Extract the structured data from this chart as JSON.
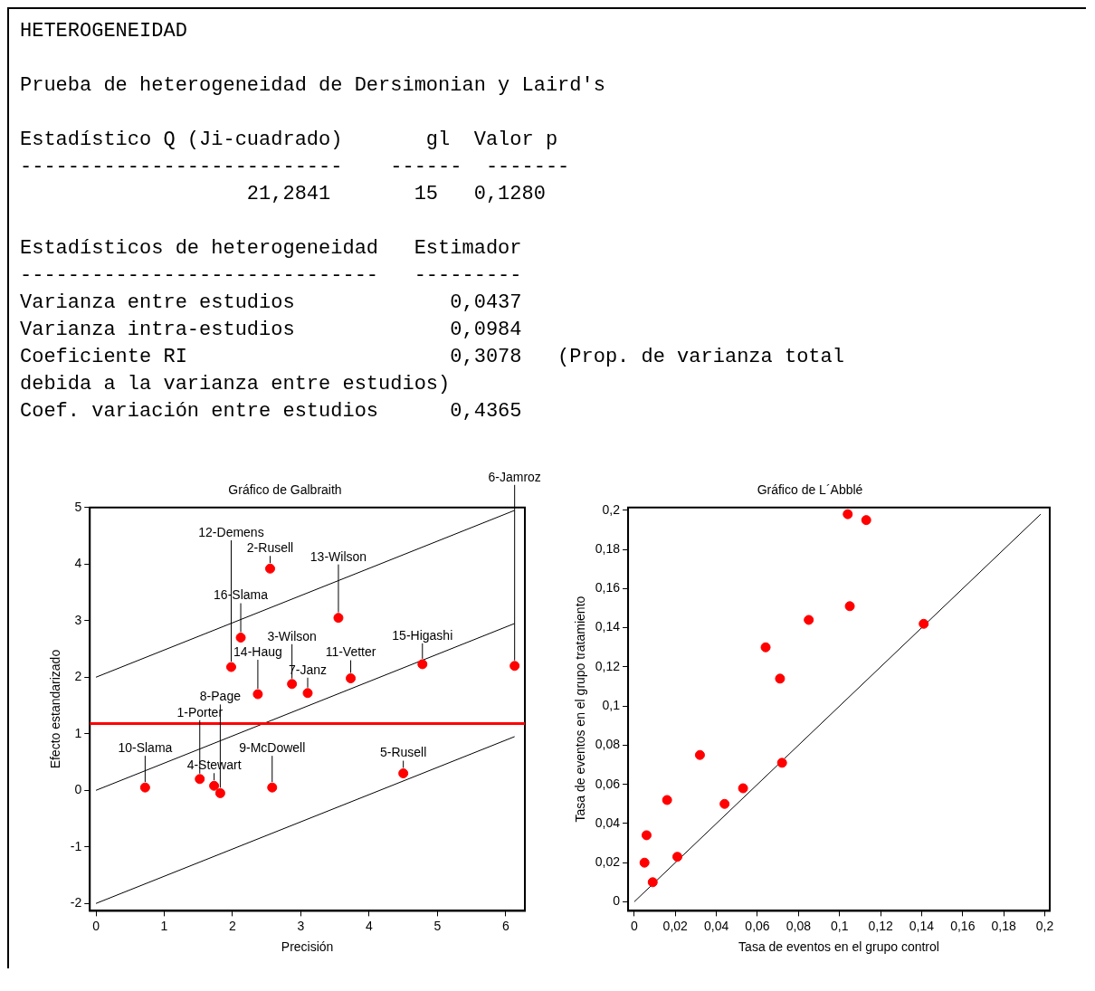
{
  "chart_data": [
    {
      "type": "other",
      "title": "HETEROGENEIDAD",
      "annotations": [
        "Prueba de heterogeneidad de Dersimonian y Laird's",
        "Estadístico Q (Ji-cuadrado)       gl  Valor p",
        "---------------------------    ------  -------",
        "                   21,2841       15   0,1280",
        "Estadísticos de heterogeneidad   Estimador",
        "------------------------------   ---------",
        "Varianza entre estudios             0,0437",
        "Varianza intra-estudios             0,0984",
        "Coeficiente RI                      0,3078   (Prop. de varianza total",
        "debida a la varianza entre estudios)",
        "Coef. variación entre estudios      0,4365"
      ]
    },
    {
      "type": "scatter",
      "title": "Gráfico de Galbraith",
      "xlabel": "Precisión",
      "ylabel": "Efecto estandarizado",
      "xlim": [
        -0.09,
        6.28
      ],
      "ylim": [
        -2.13,
        5
      ],
      "xticks": [
        0,
        1,
        2,
        3,
        4,
        5,
        6
      ],
      "yticks": [
        -2,
        -1,
        0,
        1,
        2,
        3,
        4,
        5
      ],
      "grid": false,
      "legend": false,
      "series": [
        {
          "type": "scatter",
          "color": "#ff0000",
          "marker": "circle",
          "x": [
            2.55,
            3.55,
            2.12,
            1.98,
            2.37,
            2.87,
            3.1,
            3.73,
            4.78,
            6.13,
            0.72,
            1.52,
            1.73,
            1.82,
            2.58,
            4.5
          ],
          "values": [
            3.92,
            3.05,
            2.7,
            2.18,
            1.7,
            1.88,
            1.72,
            1.98,
            2.23,
            2.2,
            0.05,
            0.2,
            0.08,
            -0.05,
            0.05,
            0.3
          ]
        },
        {
          "type": "line",
          "color": "#000000",
          "marker": "none",
          "x": [
            0,
            6.13
          ],
          "values": [
            2,
            4.95
          ]
        },
        {
          "type": "line",
          "color": "#000000",
          "marker": "none",
          "x": [
            0,
            6.13
          ],
          "values": [
            0,
            2.95
          ]
        },
        {
          "type": "line",
          "color": "#000000",
          "marker": "none",
          "x": [
            0,
            6.13
          ],
          "values": [
            -2,
            0.95
          ]
        }
      ],
      "ref_lines": [
        {
          "axis": "y",
          "value": 1.18,
          "color": "#ff0000"
        }
      ],
      "annotations": [
        {
          "text": "2-Rusell",
          "x": 2.55,
          "y": 3.92
        },
        {
          "text": "13-Wilson",
          "x": 3.55,
          "y": 3.05
        },
        {
          "text": "16-Slama",
          "x": 2.12,
          "y": 2.7
        },
        {
          "text": "12-Demens",
          "x": 1.98,
          "y": 2.18
        },
        {
          "text": "14-Haug",
          "x": 2.37,
          "y": 1.7
        },
        {
          "text": "3-Wilson",
          "x": 2.87,
          "y": 1.88
        },
        {
          "text": "7-Janz",
          "x": 3.1,
          "y": 1.72
        },
        {
          "text": "11-Vetter",
          "x": 3.73,
          "y": 1.98
        },
        {
          "text": "15-Higashi",
          "x": 4.78,
          "y": 2.23
        },
        {
          "text": "6-Jamroz",
          "x": 6.13,
          "y": 2.2
        },
        {
          "text": "10-Slama",
          "x": 0.72,
          "y": 0.05
        },
        {
          "text": "1-Porter",
          "x": 1.52,
          "y": 0.2
        },
        {
          "text": "4-Stewart",
          "x": 1.73,
          "y": 0.08
        },
        {
          "text": "8-Page",
          "x": 1.82,
          "y": -0.05
        },
        {
          "text": "9-McDowell",
          "x": 2.58,
          "y": 0.05
        },
        {
          "text": "5-Rusell",
          "x": 4.5,
          "y": 0.3
        }
      ]
    },
    {
      "type": "scatter",
      "title": "Gráfico de L´Abblé",
      "xlabel": "Tasa de eventos en el grupo control",
      "ylabel": "Tasa de eventos en el grupo tratamiento",
      "xlim": [
        -0.003,
        0.2024
      ],
      "ylim": [
        -0.0046,
        0.2014
      ],
      "xticks": [
        0,
        {
          "value": 0.02,
          "label": "0,02"
        },
        {
          "value": 0.04,
          "label": "0,04"
        },
        {
          "value": 0.06,
          "label": "0,06"
        },
        {
          "value": 0.08,
          "label": "0,08"
        },
        {
          "value": 0.1,
          "label": "0,1"
        },
        {
          "value": 0.12,
          "label": "0,12"
        },
        {
          "value": 0.14,
          "label": "0,14"
        },
        {
          "value": 0.16,
          "label": "0,16"
        },
        {
          "value": 0.18,
          "label": "0,18"
        },
        {
          "value": 0.2,
          "label": "0,2"
        }
      ],
      "yticks": [
        0,
        {
          "value": 0.02,
          "label": "0,02"
        },
        {
          "value": 0.04,
          "label": "0,04"
        },
        {
          "value": 0.06,
          "label": "0,06"
        },
        {
          "value": 0.08,
          "label": "0,08"
        },
        {
          "value": 0.1,
          "label": "0,1"
        },
        {
          "value": 0.12,
          "label": "0,12"
        },
        {
          "value": 0.14,
          "label": "0,14"
        },
        {
          "value": 0.16,
          "label": "0,16"
        },
        {
          "value": 0.18,
          "label": "0,18"
        },
        {
          "value": 0.2,
          "label": "0,2"
        }
      ],
      "grid": false,
      "legend": false,
      "series": [
        {
          "type": "scatter",
          "color": "#ff0000",
          "marker": "circle",
          "x": [
            0.005,
            0.006,
            0.009,
            0.016,
            0.021,
            0.032,
            0.044,
            0.053,
            0.064,
            0.071,
            0.072,
            0.085,
            0.104,
            0.105,
            0.113,
            0.141
          ],
          "values": [
            0.02,
            0.034,
            0.01,
            0.052,
            0.023,
            0.075,
            0.05,
            0.058,
            0.13,
            0.114,
            0.071,
            0.144,
            0.198,
            0.151,
            0.195,
            0.142
          ]
        },
        {
          "type": "line",
          "color": "#000000",
          "marker": "none",
          "x": [
            0,
            0.198
          ],
          "values": [
            0,
            0.198
          ]
        }
      ]
    }
  ]
}
